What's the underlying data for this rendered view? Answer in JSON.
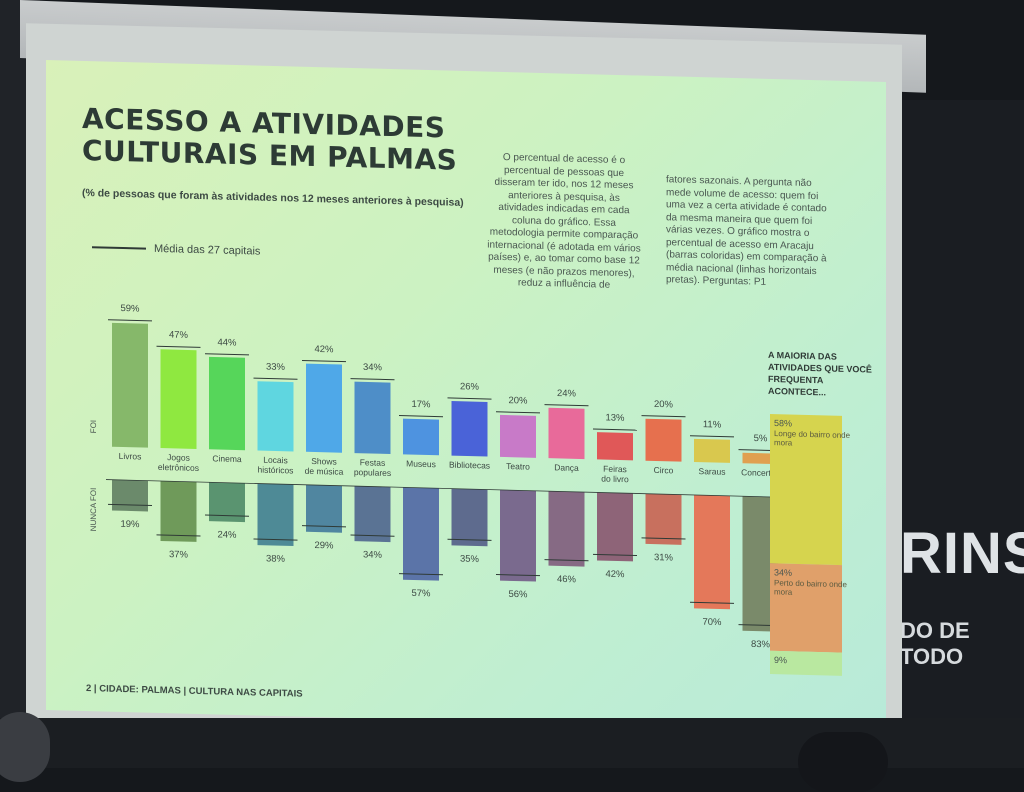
{
  "wall": {
    "brand_text": "RINS",
    "slogan_text": "DO DE TODO"
  },
  "slide": {
    "title_line1": "ACESSO A ATIVIDADES",
    "title_line2": "CULTURAIS EM PALMAS",
    "subtitle": "(% de pessoas que foram às atividades nos 12 meses anteriores à pesquisa)",
    "legend_label": "Média das 27 capitais",
    "description_col1": "O percentual de acesso é o percentual de pessoas que disseram ter ido, nos 12 meses anteriores à pesquisa, às atividades indicadas em cada coluna do gráfico. Essa metodologia permite comparação internacional (é adotada em vários países) e, ao tomar como base 12 meses (e não prazos menores), reduz a influência de",
    "description_col2": "fatores sazonais. A pergunta não mede volume de acesso: quem foi uma vez a certa atividade é contado da mesma maneira que quem foi várias vezes. O gráfico mostra o percentual de acesso em Aracaju (barras coloridas) em comparação à média nacional (linhas horizontais pretas). Perguntas: P1",
    "side_title": "A MAIORIA DAS ATIVIDADES QUE VOCÊ FREQUENTA ACONTECE...",
    "footer": "2 | CIDADE: PALMAS | CULTURA NAS CAPITAIS"
  },
  "chart_data": [
    {
      "type": "bar",
      "title": "ACESSO A ATIVIDADES CULTURAIS EM PALMAS",
      "axis_label_top": "FOI",
      "axis_label_bottom": "NUNCA FOI",
      "categories": [
        "Livros",
        "Jogos eletrônicos",
        "Cinema",
        "Locais históricos",
        "Shows de música",
        "Festas populares",
        "Museus",
        "Bibliotecas",
        "Teatro",
        "Dança",
        "Feiras do livro",
        "Circo",
        "Saraus",
        "Concertos"
      ],
      "series": [
        {
          "name": "FOI",
          "values": [
            59,
            47,
            44,
            33,
            42,
            34,
            17,
            26,
            20,
            24,
            13,
            20,
            11,
            5
          ]
        },
        {
          "name": "NUNCA FOI",
          "values": [
            19,
            37,
            24,
            38,
            29,
            34,
            57,
            35,
            56,
            46,
            42,
            31,
            70,
            83
          ]
        }
      ],
      "colors": [
        "#86b86a",
        "#8fe840",
        "#56d65a",
        "#5fd6e0",
        "#4fa8e8",
        "#4e8ec8",
        "#4e93e0",
        "#4a63d8",
        "#c87ac8",
        "#e86a9a",
        "#e05858",
        "#e6704e",
        "#d9c84e",
        "#e0a050"
      ],
      "never_colors": [
        "#6b8a6b",
        "#6f9a5a",
        "#5a9470",
        "#4e8a96",
        "#5086a0",
        "#5a7394",
        "#5b74a8",
        "#5e6b8e",
        "#7a6a8e",
        "#866a84",
        "#8e6478",
        "#c8705e",
        "#e4785a",
        "#7a8a6a"
      ],
      "ylim": [
        0,
        100
      ]
    },
    {
      "type": "bar",
      "title": "A MAIORIA DAS ATIVIDADES QUE VOCÊ FREQUENTA ACONTECE...",
      "segments": [
        {
          "label": "Longe do bairro onde mora",
          "value": 58,
          "value_label": "58%",
          "color": "#d6d44e"
        },
        {
          "label": "Perto do bairro onde mora",
          "value": 34,
          "value_label": "34%",
          "color": "#e0a06a"
        },
        {
          "label": "",
          "value": 9,
          "value_label": "9%",
          "color": "#b9e8a0"
        }
      ]
    }
  ]
}
